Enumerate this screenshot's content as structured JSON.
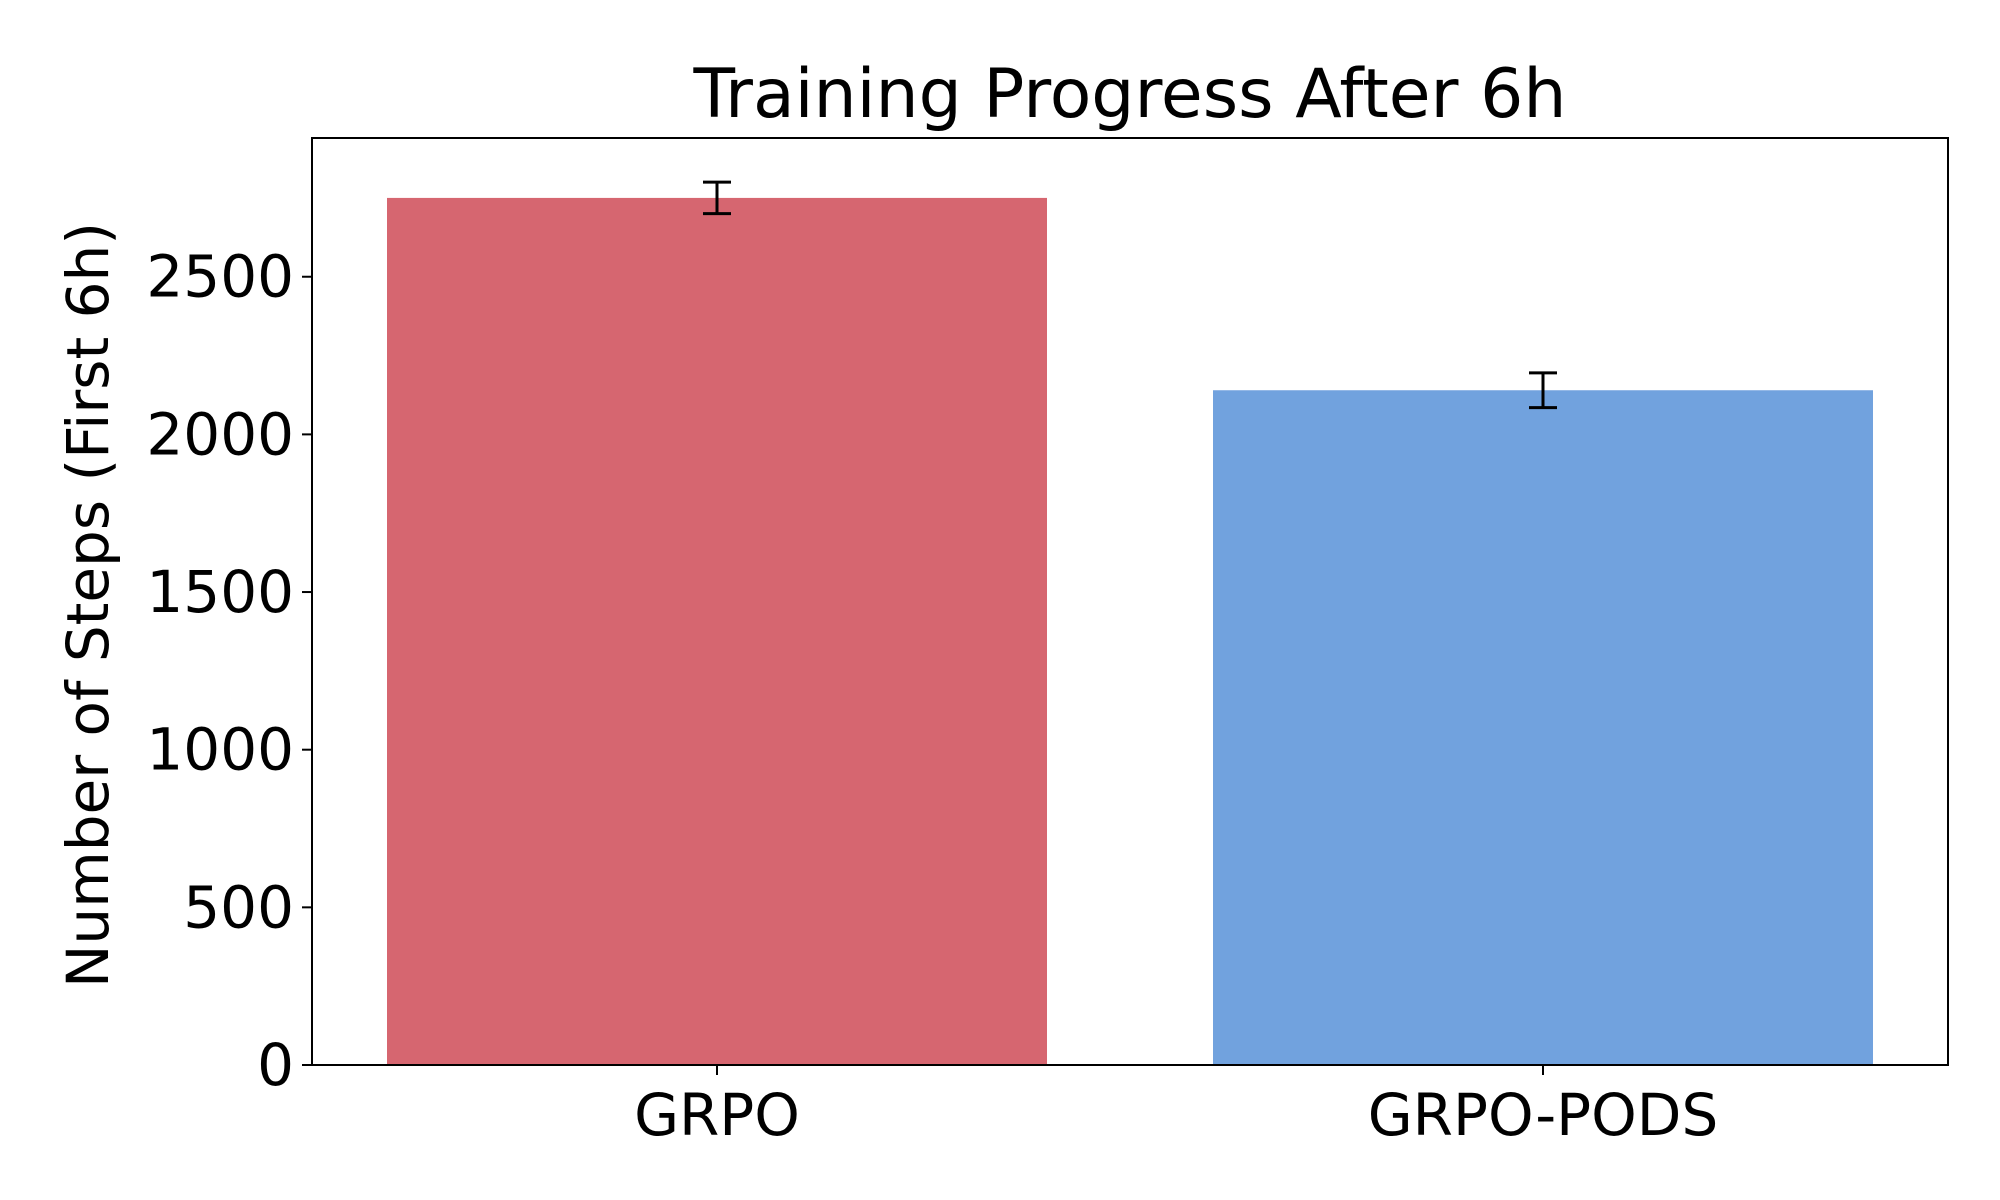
{
  "chart_data": {
    "type": "bar",
    "title": "Training Progress After 6h",
    "xlabel": "",
    "ylabel": "Number of Steps (First 6h)",
    "categories": [
      "GRPO",
      "GRPO-PODS"
    ],
    "values": [
      2750,
      2140
    ],
    "error_bars": [
      50,
      55
    ],
    "colors": [
      "#d66670",
      "#71a2de"
    ],
    "ylim": [
      0,
      2940
    ],
    "yticks": [
      0,
      500,
      1000,
      1500,
      2000,
      2500
    ],
    "grid": false,
    "legend": "none"
  }
}
